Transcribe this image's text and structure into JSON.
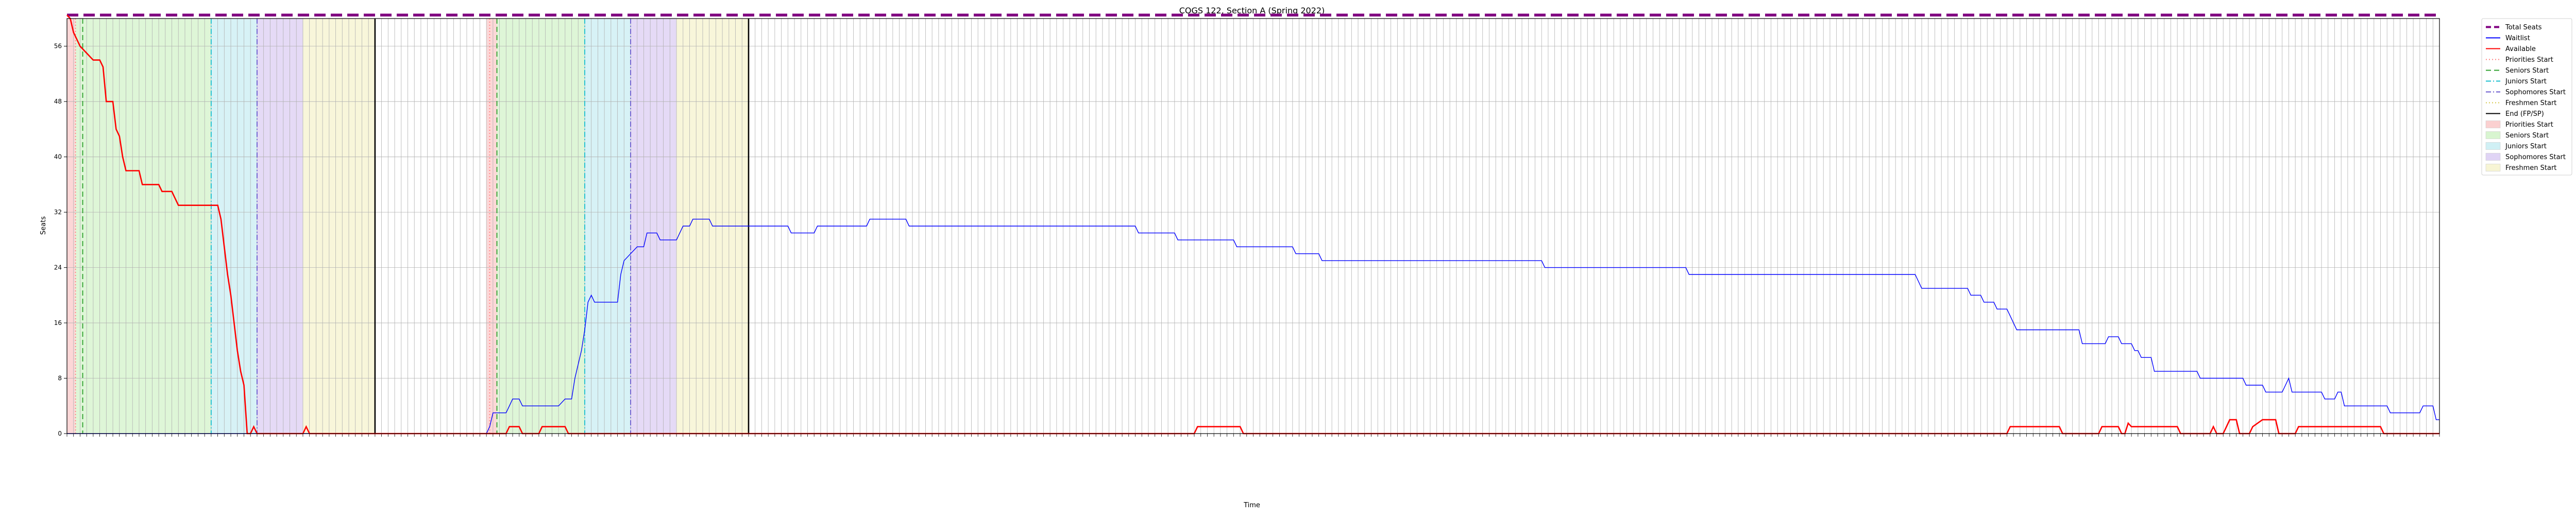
{
  "chart_data": {
    "type": "line",
    "title": "COGS 122, Section A (Spring 2022)",
    "xlabel": "Time",
    "ylabel": "Seats",
    "ylim": [
      0,
      60
    ],
    "xlim": [
      0,
      362
    ],
    "yticks": [
      0,
      8,
      16,
      24,
      32,
      40,
      48,
      56
    ],
    "grid": true,
    "legend_position": "outside-right",
    "x_tick_labels_note": "x axis has 362 dense rotated timestamp ticks; labels are not legible",
    "series": [
      {
        "name": "Total Seats",
        "color": "#800080",
        "style": "dashed",
        "points": [
          [
            0,
            60.5
          ],
          [
            362,
            60.5
          ]
        ]
      },
      {
        "name": "Waitlist",
        "color": "#0000ff",
        "style": "solid",
        "points": [
          [
            0,
            0
          ],
          [
            64,
            0
          ],
          [
            64.5,
            1
          ],
          [
            65,
            3
          ],
          [
            67,
            3
          ],
          [
            67.5,
            4
          ],
          [
            68,
            5
          ],
          [
            69,
            5
          ],
          [
            69.5,
            4
          ],
          [
            75,
            4
          ],
          [
            76,
            5
          ],
          [
            77,
            5
          ],
          [
            77.5,
            8
          ],
          [
            78,
            10
          ],
          [
            78.5,
            12
          ],
          [
            79,
            15
          ],
          [
            79.5,
            19
          ],
          [
            80,
            20
          ],
          [
            80.5,
            19
          ],
          [
            84,
            19
          ],
          [
            84.5,
            23
          ],
          [
            85,
            25
          ],
          [
            86,
            26
          ],
          [
            87,
            27
          ],
          [
            88,
            27
          ],
          [
            88.5,
            29
          ],
          [
            90,
            29
          ],
          [
            90.5,
            28
          ],
          [
            93,
            28
          ],
          [
            93.5,
            29
          ],
          [
            94,
            30
          ],
          [
            95,
            30
          ],
          [
            95.5,
            31
          ],
          [
            98,
            31
          ],
          [
            98.5,
            30
          ],
          [
            110,
            30
          ],
          [
            110.5,
            29
          ],
          [
            114,
            29
          ],
          [
            114.5,
            30
          ],
          [
            122,
            30
          ],
          [
            122.5,
            31
          ],
          [
            128,
            31
          ],
          [
            128.5,
            30
          ],
          [
            163,
            30
          ],
          [
            163.5,
            29
          ],
          [
            169,
            29
          ],
          [
            169.5,
            28
          ],
          [
            178,
            28
          ],
          [
            178.5,
            27
          ],
          [
            187,
            27
          ],
          [
            187.5,
            26
          ],
          [
            191,
            26
          ],
          [
            191.5,
            25
          ],
          [
            225,
            25
          ],
          [
            225.5,
            24
          ],
          [
            247,
            24
          ],
          [
            247.5,
            23
          ],
          [
            282,
            23
          ],
          [
            282.5,
            22
          ],
          [
            283,
            21
          ],
          [
            290,
            21
          ],
          [
            290.5,
            20
          ],
          [
            292,
            20
          ],
          [
            292.5,
            19
          ],
          [
            294,
            19
          ],
          [
            294.5,
            18
          ],
          [
            296,
            18
          ],
          [
            296.5,
            17
          ],
          [
            297,
            16
          ],
          [
            297.5,
            15
          ],
          [
            307,
            15
          ],
          [
            307.5,
            13
          ],
          [
            311,
            13
          ],
          [
            311.5,
            14
          ],
          [
            313,
            14
          ],
          [
            313.5,
            13
          ],
          [
            315,
            13
          ],
          [
            315.5,
            12
          ],
          [
            316,
            12
          ],
          [
            316.5,
            11
          ],
          [
            318,
            11
          ],
          [
            318.5,
            9
          ],
          [
            325,
            9
          ],
          [
            325.5,
            8
          ],
          [
            332,
            8
          ],
          [
            332.5,
            7
          ],
          [
            335,
            7
          ],
          [
            335.5,
            6
          ],
          [
            338,
            6
          ],
          [
            338.5,
            7
          ],
          [
            339,
            8
          ],
          [
            339.5,
            6
          ],
          [
            344,
            6
          ],
          [
            344.5,
            5
          ],
          [
            346,
            5
          ],
          [
            346.5,
            6
          ],
          [
            347,
            6
          ],
          [
            347.5,
            4
          ],
          [
            354,
            4
          ],
          [
            354.5,
            3
          ],
          [
            359,
            3
          ],
          [
            359.5,
            4
          ],
          [
            361,
            4
          ],
          [
            361.5,
            2
          ],
          [
            362,
            2
          ]
        ]
      },
      {
        "name": "Available",
        "color": "#ff0000",
        "style": "solid",
        "points": [
          [
            0,
            60.5
          ],
          [
            0.5,
            60
          ],
          [
            1,
            58
          ],
          [
            1.5,
            57
          ],
          [
            2,
            56
          ],
          [
            3,
            55
          ],
          [
            4,
            54
          ],
          [
            5,
            54
          ],
          [
            5.5,
            53
          ],
          [
            6,
            48
          ],
          [
            7,
            48
          ],
          [
            7.5,
            44
          ],
          [
            8,
            43
          ],
          [
            8.5,
            40
          ],
          [
            9,
            38
          ],
          [
            11,
            38
          ],
          [
            11.5,
            36
          ],
          [
            14,
            36
          ],
          [
            14.5,
            35
          ],
          [
            16,
            35
          ],
          [
            16.5,
            34
          ],
          [
            17,
            33
          ],
          [
            23,
            33
          ],
          [
            23.5,
            31
          ],
          [
            24,
            27
          ],
          [
            24.5,
            23
          ],
          [
            25,
            20
          ],
          [
            25.5,
            16
          ],
          [
            26,
            12
          ],
          [
            26.5,
            9
          ],
          [
            27,
            7
          ],
          [
            27.5,
            0
          ],
          [
            28,
            0
          ],
          [
            28.5,
            1
          ],
          [
            29,
            0
          ],
          [
            36,
            0
          ],
          [
            36.5,
            1
          ],
          [
            37,
            0
          ],
          [
            67,
            0
          ],
          [
            67.5,
            1
          ],
          [
            69,
            1
          ],
          [
            69.5,
            0
          ],
          [
            72,
            0
          ],
          [
            72.5,
            1
          ],
          [
            76,
            1
          ],
          [
            76.5,
            0
          ],
          [
            172,
            0
          ],
          [
            172.5,
            1
          ],
          [
            179,
            1
          ],
          [
            179.5,
            0
          ],
          [
            296,
            0
          ],
          [
            296.5,
            1
          ],
          [
            304,
            1
          ],
          [
            304.5,
            0
          ],
          [
            310,
            0
          ],
          [
            310.5,
            1
          ],
          [
            313,
            1
          ],
          [
            313.5,
            0
          ],
          [
            314,
            0
          ],
          [
            314.5,
            1.5
          ],
          [
            315,
            1
          ],
          [
            322,
            1
          ],
          [
            322.5,
            0
          ],
          [
            327,
            0
          ],
          [
            327.5,
            1
          ],
          [
            328,
            0
          ],
          [
            329,
            0
          ],
          [
            329.5,
            1
          ],
          [
            330,
            2
          ],
          [
            331,
            2
          ],
          [
            331.5,
            0
          ],
          [
            333,
            0
          ],
          [
            333.5,
            1
          ],
          [
            335,
            2
          ],
          [
            337,
            2
          ],
          [
            337.5,
            0
          ],
          [
            340,
            0
          ],
          [
            340.5,
            1
          ],
          [
            353,
            1
          ],
          [
            353.5,
            0
          ],
          [
            362,
            0
          ]
        ]
      }
    ],
    "vertical_lines": [
      {
        "name": "Priorities Start",
        "x": 1.3,
        "color": "#ff7f7f",
        "style": "dotted"
      },
      {
        "name": "Seniors Start",
        "x": 2.4,
        "color": "#2ca02c",
        "style": "dashed"
      },
      {
        "name": "Juniors Start",
        "x": 22,
        "color": "#17becf",
        "style": "dashdot"
      },
      {
        "name": "Sophomores Start",
        "x": 29,
        "color": "#6a5acd",
        "style": "dashdot"
      },
      {
        "name": "End (FP/SP)",
        "x": 47,
        "color": "#000000",
        "style": "solid"
      },
      {
        "name": "Priorities Start",
        "x": 64.5,
        "color": "#ff7f7f",
        "style": "dotted"
      },
      {
        "name": "Seniors Start",
        "x": 65.6,
        "color": "#2ca02c",
        "style": "dashed"
      },
      {
        "name": "Juniors Start",
        "x": 79,
        "color": "#17becf",
        "style": "dashdot"
      },
      {
        "name": "Sophomores Start",
        "x": 86,
        "color": "#6a5acd",
        "style": "dashdot"
      },
      {
        "name": "End (FP/SP)",
        "x": 104,
        "color": "#000000",
        "style": "solid"
      }
    ],
    "spans": [
      {
        "name": "Priorities Start",
        "from": 0,
        "to": 1.3,
        "color": "#fbd0d0"
      },
      {
        "name": "Seniors Start",
        "from": 1.3,
        "to": 22,
        "color": "#d8f5d0"
      },
      {
        "name": "Juniors Start",
        "from": 22,
        "to": 29,
        "color": "#d0f0f5"
      },
      {
        "name": "Sophomores Start",
        "from": 29,
        "to": 36,
        "color": "#e0d4f5"
      },
      {
        "name": "Freshmen Start",
        "from": 36,
        "to": 47,
        "color": "#f7f5d4"
      },
      {
        "name": "Priorities Start",
        "from": 64,
        "to": 65.6,
        "color": "#fbd0d0"
      },
      {
        "name": "Seniors Start",
        "from": 65.6,
        "to": 79,
        "color": "#d8f5d0"
      },
      {
        "name": "Juniors Start",
        "from": 79,
        "to": 86,
        "color": "#d0f0f5"
      },
      {
        "name": "Sophomores Start",
        "from": 86,
        "to": 93,
        "color": "#e0d4f5"
      },
      {
        "name": "Freshmen Start",
        "from": 93,
        "to": 104,
        "color": "#f7f5d4"
      }
    ],
    "legend": [
      {
        "label": "Total Seats",
        "kind": "line",
        "color": "#800080",
        "style": "dashed"
      },
      {
        "label": "Waitlist",
        "kind": "line",
        "color": "#0000ff",
        "style": "solid"
      },
      {
        "label": "Available",
        "kind": "line",
        "color": "#ff0000",
        "style": "solid"
      },
      {
        "label": "Priorities Start",
        "kind": "line",
        "color": "#ff7f7f",
        "style": "dotted"
      },
      {
        "label": "Seniors Start",
        "kind": "line",
        "color": "#2ca02c",
        "style": "dashed"
      },
      {
        "label": "Juniors Start",
        "kind": "line",
        "color": "#17becf",
        "style": "dashdot"
      },
      {
        "label": "Sophomores Start",
        "kind": "line",
        "color": "#6a5acd",
        "style": "dashdot"
      },
      {
        "label": "Freshmen Start",
        "kind": "line",
        "color": "#d4c84a",
        "style": "dotted"
      },
      {
        "label": "End (FP/SP)",
        "kind": "line",
        "color": "#000000",
        "style": "solid"
      },
      {
        "label": "Priorities Start",
        "kind": "patch",
        "color": "#fbd0d0"
      },
      {
        "label": "Seniors Start",
        "kind": "patch",
        "color": "#d8f5d0"
      },
      {
        "label": "Juniors Start",
        "kind": "patch",
        "color": "#d0f0f5"
      },
      {
        "label": "Sophomores Start",
        "kind": "patch",
        "color": "#e0d4f5"
      },
      {
        "label": "Freshmen Start",
        "kind": "patch",
        "color": "#f7f5d4"
      }
    ]
  }
}
